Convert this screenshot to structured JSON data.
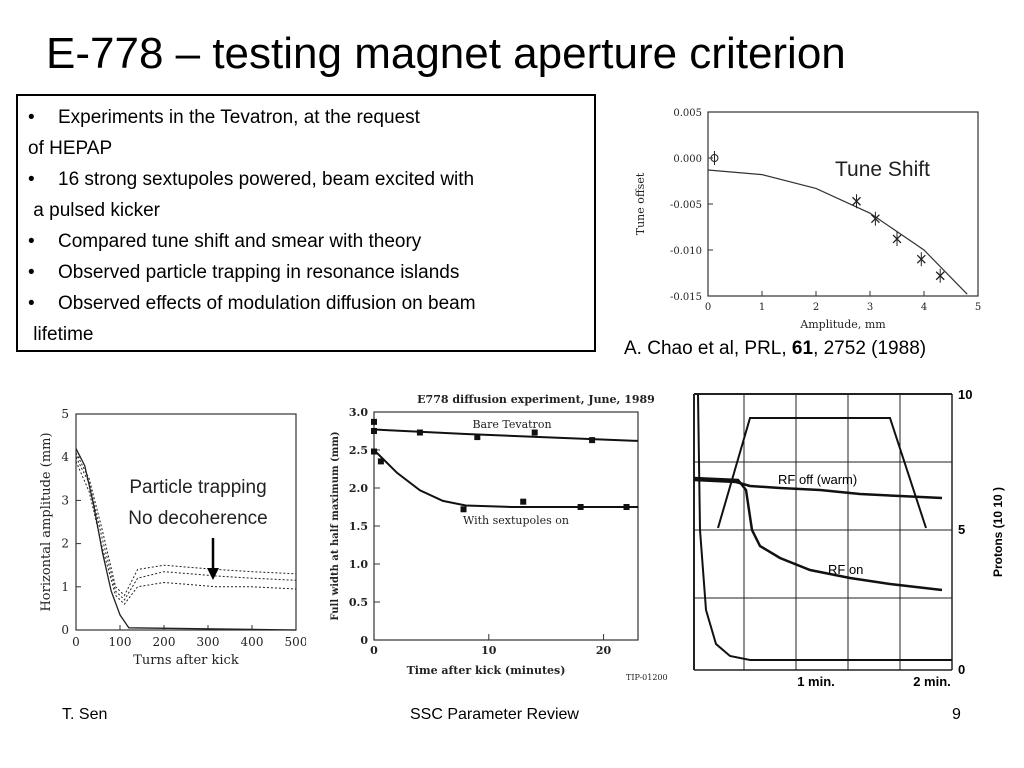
{
  "slide": {
    "title": "E-778 – testing magnet aperture criterion",
    "bullets": [
      {
        "line1": "Experiments in the Tevatron, at the request",
        "line2": "of HEPAP"
      },
      {
        "line1": "16 strong sextupoles powered, beam excited with",
        "line2": " a pulsed kicker"
      },
      {
        "line1": "Compared tune shift and smear with theory"
      },
      {
        "line1": "Observed particle trapping in resonance islands"
      },
      {
        "line1": "Observed effects of modulation diffusion on beam",
        "line2": " lifetime"
      }
    ],
    "bullet_glyph": "•",
    "citation": {
      "pre": "A. Chao et al, PRL, ",
      "bold": "61",
      "post": ", 2752 (1988)"
    }
  },
  "footer": {
    "left": "T. Sen",
    "center": "SSC Parameter Review",
    "right": "9"
  },
  "chart_data": [
    {
      "type": "scatter",
      "annotation": "Tune Shift",
      "xlabel": "Amplitude, mm",
      "ylabel": "Tune offset",
      "xlim": [
        0,
        5
      ],
      "ylim": [
        -0.015,
        0.005
      ],
      "x_ticks": [
        "0",
        "1",
        "2",
        "3",
        "4",
        "5"
      ],
      "y_ticks": [
        "0.005",
        "0.000",
        "-0.005",
        "-0.010",
        "-0.015"
      ],
      "points": [
        {
          "x": 0.12,
          "y": 0.0,
          "marker": "circle"
        },
        {
          "x": 2.75,
          "y": -0.0047,
          "marker": "x"
        },
        {
          "x": 3.1,
          "y": -0.0066,
          "marker": "x"
        },
        {
          "x": 3.5,
          "y": -0.0088,
          "marker": "x"
        },
        {
          "x": 3.95,
          "y": -0.011,
          "marker": "x"
        },
        {
          "x": 4.3,
          "y": -0.0128,
          "marker": "x"
        }
      ],
      "curve": [
        [
          0,
          -0.0013
        ],
        [
          1,
          -0.0018
        ],
        [
          2,
          -0.0033
        ],
        [
          3,
          -0.006
        ],
        [
          4,
          -0.01
        ],
        [
          4.8,
          -0.0148
        ]
      ]
    },
    {
      "type": "line",
      "annotation": [
        "Particle trapping",
        "No decoherence"
      ],
      "xlabel": "Turns after kick",
      "ylabel": "Horizontal amplitude (mm)",
      "xlim": [
        0,
        500
      ],
      "ylim": [
        0,
        5
      ],
      "x_ticks": [
        "0",
        "100",
        "200",
        "300",
        "400",
        "500"
      ],
      "y_ticks": [
        "0",
        "1",
        "2",
        "3",
        "4",
        "5"
      ],
      "series": [
        {
          "values": [
            [
              0,
              4.2
            ],
            [
              20,
              3.8
            ],
            [
              40,
              2.9
            ],
            [
              60,
              1.8
            ],
            [
              80,
              0.9
            ],
            [
              100,
              0.35
            ],
            [
              120,
              0.05
            ],
            [
              500,
              0.0
            ]
          ]
        },
        {
          "values": [
            [
              0,
              4.0
            ],
            [
              30,
              3.4
            ],
            [
              60,
              2.1
            ],
            [
              90,
              0.9
            ],
            [
              110,
              0.7
            ],
            [
              140,
              1.2
            ],
            [
              200,
              1.35
            ],
            [
              260,
              1.3
            ],
            [
              320,
              1.25
            ],
            [
              400,
              1.2
            ],
            [
              500,
              1.15
            ]
          ]
        },
        {
          "values": [
            [
              0,
              3.9
            ],
            [
              30,
              3.2
            ],
            [
              60,
              1.9
            ],
            [
              90,
              0.8
            ],
            [
              110,
              0.6
            ],
            [
              140,
              1.0
            ],
            [
              200,
              1.1
            ],
            [
              260,
              1.05
            ],
            [
              320,
              1.0
            ],
            [
              400,
              1.0
            ],
            [
              500,
              0.95
            ]
          ]
        },
        {
          "values": [
            [
              0,
              4.1
            ],
            [
              30,
              3.5
            ],
            [
              60,
              2.3
            ],
            [
              90,
              1.0
            ],
            [
              110,
              0.8
            ],
            [
              140,
              1.4
            ],
            [
              200,
              1.5
            ],
            [
              260,
              1.45
            ],
            [
              320,
              1.4
            ],
            [
              400,
              1.35
            ],
            [
              500,
              1.3
            ]
          ]
        }
      ]
    },
    {
      "type": "line",
      "title": "E778 diffusion experiment, June, 1989",
      "xlabel": "Time after kick (minutes)",
      "ylabel": "Full width at half maximum (mm)",
      "xlim": [
        0,
        23
      ],
      "ylim": [
        0,
        3.0
      ],
      "x_ticks": [
        "0",
        "10",
        "20"
      ],
      "y_ticks": [
        "0",
        "0.5",
        "1.0",
        "1.5",
        "2.0",
        "2.5",
        "3.0"
      ],
      "series": [
        {
          "name": "Bare Tevatron",
          "points": [
            [
              0,
              2.87
            ],
            [
              0,
              2.75
            ],
            [
              4,
              2.73
            ],
            [
              9,
              2.67
            ],
            [
              14,
              2.73
            ],
            [
              19,
              2.63
            ]
          ],
          "fit": [
            [
              0,
              2.77
            ],
            [
              8,
              2.71
            ],
            [
              16,
              2.66
            ],
            [
              23,
              2.62
            ]
          ]
        },
        {
          "name": "With sextupoles on",
          "points": [
            [
              0,
              2.48
            ],
            [
              0.6,
              2.35
            ],
            [
              7.8,
              1.72
            ],
            [
              13,
              1.82
            ],
            [
              18,
              1.75
            ],
            [
              22,
              1.75
            ]
          ],
          "fit": [
            [
              0,
              2.5
            ],
            [
              2,
              2.2
            ],
            [
              4,
              1.97
            ],
            [
              6,
              1.83
            ],
            [
              8,
              1.77
            ],
            [
              12,
              1.75
            ],
            [
              23,
              1.75
            ]
          ]
        }
      ],
      "figure_id": "TIP-01200"
    },
    {
      "type": "line",
      "xlabel": "",
      "ylabel": "Protons (10 10 )",
      "y_ticks": [
        "0",
        "5",
        "10"
      ],
      "x_ticks": [
        "1 min.",
        "2 min."
      ],
      "series": [
        {
          "name": "RF off (warm)"
        },
        {
          "name": "RF on"
        }
      ]
    }
  ]
}
